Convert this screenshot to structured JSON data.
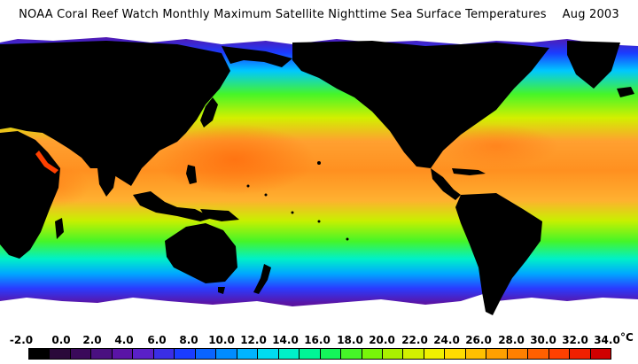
{
  "title": "NOAA Coral Reef Watch Monthly Maximum Satellite Nighttime Sea Surface Temperatures",
  "date": "Aug 2003",
  "unit": "°C",
  "scale": {
    "labels": [
      "-2.0",
      "0.0",
      "2.0",
      "4.0",
      "6.0",
      "8.0",
      "10.0",
      "12.0",
      "14.0",
      "16.0",
      "18.0",
      "20.0",
      "22.0",
      "24.0",
      "26.0",
      "28.0",
      "30.0",
      "32.0",
      "34.0"
    ],
    "colors": [
      "#000000",
      "#2a0a3a",
      "#3a0a5a",
      "#4a1080",
      "#5a14a6",
      "#5a20c8",
      "#3a2ee6",
      "#1a3cff",
      "#0a64ff",
      "#008cff",
      "#00b4ff",
      "#00dcf0",
      "#00f0c8",
      "#00f596",
      "#14f55a",
      "#46f528",
      "#78f50a",
      "#aaf000",
      "#d2f000",
      "#f0f000",
      "#ffdc00",
      "#ffc000",
      "#ffa000",
      "#ff8000",
      "#ff6000",
      "#ff4000",
      "#f02000",
      "#d00000"
    ]
  },
  "colors": {
    "land": "#000000",
    "ice": "#ffffff",
    "cold": "#6a2aa8",
    "cool": "#2a50ff",
    "mid": "#20e6b8",
    "warm": "#7af028",
    "hot": "#ffa030",
    "hottest": "#ff7818"
  }
}
